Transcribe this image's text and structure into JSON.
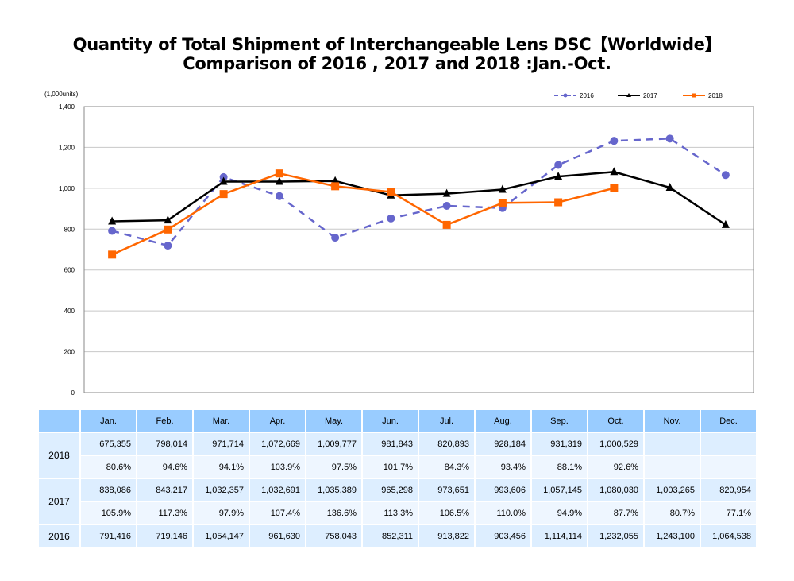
{
  "title_line1": "Quantity of Total Shipment of Interchangeable Lens DSC【Worldwide】",
  "title_line2": "Comparison of 2016 , 2017 and 2018 :Jan.-Oct.",
  "chart_data": {
    "type": "line",
    "title": "Quantity of Total Shipment of Interchangeable Lens DSC【Worldwide】 Comparison of 2016 , 2017 and 2018 :Jan.-Oct.",
    "unit_label": "(1,000units)",
    "xlabel": "",
    "ylabel": "(1,000units)",
    "categories": [
      "Jan.",
      "Feb.",
      "Mar.",
      "Apr.",
      "May.",
      "Jun.",
      "Jul.",
      "Aug.",
      "Sep.",
      "Oct.",
      "Nov.",
      "Dec."
    ],
    "ylim": [
      0,
      1400
    ],
    "yticks": [
      0,
      200,
      400,
      600,
      800,
      1000,
      1200,
      1400
    ],
    "ytick_labels": [
      "0",
      "200",
      "400",
      "600",
      "800",
      "1,000",
      "1,200",
      "1,400"
    ],
    "grid": true,
    "legend_position": "top-right",
    "series": [
      {
        "name": "2016",
        "color": "#6666cc",
        "style": "dashed",
        "marker": "circle",
        "values": [
          791.416,
          719.146,
          1054.147,
          961.63,
          758.043,
          852.311,
          913.822,
          903.456,
          1114.114,
          1232.055,
          1243.1,
          1064.538
        ]
      },
      {
        "name": "2017",
        "color": "#000000",
        "style": "solid",
        "marker": "triangle",
        "values": [
          838.086,
          843.217,
          1032.357,
          1032.691,
          1035.389,
          965.298,
          973.651,
          993.606,
          1057.145,
          1080.03,
          1003.265,
          820.954
        ]
      },
      {
        "name": "2018",
        "color": "#ff6600",
        "style": "solid",
        "marker": "square",
        "values": [
          675.355,
          798.014,
          971.714,
          1072.669,
          1009.777,
          981.843,
          820.893,
          928.184,
          931.319,
          1000.529,
          null,
          null
        ]
      }
    ]
  },
  "table": {
    "months": [
      "Jan.",
      "Feb.",
      "Mar.",
      "Apr.",
      "May.",
      "Jun.",
      "Jul.",
      "Aug.",
      "Sep.",
      "Oct.",
      "Nov.",
      "Dec."
    ],
    "rows": [
      {
        "year": "2018",
        "units": [
          "675,355",
          "798,014",
          "971,714",
          "1,072,669",
          "1,009,777",
          "981,843",
          "820,893",
          "928,184",
          "931,319",
          "1,000,529",
          "",
          ""
        ],
        "ratio": [
          "80.6%",
          "94.6%",
          "94.1%",
          "103.9%",
          "97.5%",
          "101.7%",
          "84.3%",
          "93.4%",
          "88.1%",
          "92.6%",
          "",
          ""
        ]
      },
      {
        "year": "2017",
        "units": [
          "838,086",
          "843,217",
          "1,032,357",
          "1,032,691",
          "1,035,389",
          "965,298",
          "973,651",
          "993,606",
          "1,057,145",
          "1,080,030",
          "1,003,265",
          "820,954"
        ],
        "ratio": [
          "105.9%",
          "117.3%",
          "97.9%",
          "107.4%",
          "136.6%",
          "113.3%",
          "106.5%",
          "110.0%",
          "94.9%",
          "87.7%",
          "80.7%",
          "77.1%"
        ]
      },
      {
        "year": "2016",
        "units": [
          "791,416",
          "719,146",
          "1,054,147",
          "961,630",
          "758,043",
          "852,311",
          "913,822",
          "903,456",
          "1,114,114",
          "1,232,055",
          "1,243,100",
          "1,064,538"
        ]
      }
    ]
  }
}
